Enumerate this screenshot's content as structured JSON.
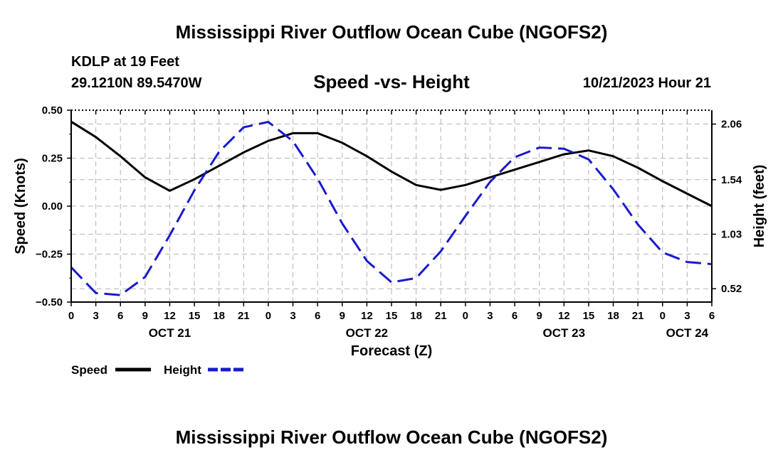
{
  "titles": {
    "top": "Mississippi River Outflow Ocean Cube (NGOFS2)",
    "bottom": "Mississippi River Outflow Ocean Cube (NGOFS2)"
  },
  "info": {
    "station": "KDLP at 19 Feet",
    "coords": "29.1210N  89.5470W",
    "subtitle": "Speed -vs- Height",
    "datetime": "10/21/2023 Hour 21"
  },
  "colors": {
    "speed": "#000000",
    "height": "#1a1acc",
    "grid": "#b4b4b4"
  },
  "chart_data": {
    "type": "line",
    "title": "Speed -vs- Height",
    "xlabel": "Forecast (Z)",
    "ylabel_left": "Speed (Knots)",
    "ylabel_right": "Height (feet)",
    "x_unit": "forecast hour from 10/21 00Z",
    "xlim": [
      0,
      78
    ],
    "ylim_left": [
      -0.5,
      0.5
    ],
    "ylim_right": [
      0.395,
      2.19
    ],
    "x_ticks": [
      0,
      3,
      6,
      9,
      12,
      15,
      18,
      21,
      24,
      27,
      30,
      33,
      36,
      39,
      42,
      45,
      48,
      51,
      54,
      57,
      60,
      63,
      66,
      69,
      72,
      75,
      78
    ],
    "x_tick_labels": [
      "0",
      "3",
      "6",
      "9",
      "12",
      "15",
      "18",
      "21",
      "0",
      "3",
      "6",
      "9",
      "12",
      "15",
      "18",
      "21",
      "0",
      "3",
      "6",
      "9",
      "12",
      "15",
      "18",
      "21",
      "0",
      "3",
      "6"
    ],
    "date_labels": [
      {
        "text": "OCT 21",
        "at": 12
      },
      {
        "text": "OCT 22",
        "at": 36
      },
      {
        "text": "OCT 23",
        "at": 60
      },
      {
        "text": "OCT 24",
        "at": 75
      }
    ],
    "y_left_ticks": [
      0.5,
      0.25,
      0.0,
      -0.25,
      -0.5
    ],
    "y_left_tick_labels": [
      "0.50",
      "0.25",
      "0.00",
      "−0.25",
      "−0.50"
    ],
    "y_right_ticks": [
      2.06,
      1.54,
      1.03,
      0.52
    ],
    "y_right_tick_labels": [
      "2.06",
      "1.54",
      "1.03",
      "0.52"
    ],
    "grid": true,
    "legend_position": "bottom-left",
    "series": [
      {
        "name": "Speed",
        "axis": "left",
        "style": "solid",
        "x": [
          0,
          3,
          6,
          9,
          12,
          15,
          18,
          21,
          24,
          27,
          30,
          33,
          36,
          39,
          42,
          45,
          48,
          51,
          54,
          57,
          60,
          63,
          66,
          69,
          72,
          75,
          78
        ],
        "values": [
          0.44,
          0.36,
          0.26,
          0.15,
          0.08,
          0.14,
          0.21,
          0.28,
          0.34,
          0.38,
          0.38,
          0.33,
          0.26,
          0.18,
          0.11,
          0.085,
          0.11,
          0.15,
          0.19,
          0.23,
          0.27,
          0.29,
          0.26,
          0.2,
          0.13,
          0.065,
          0.0
        ]
      },
      {
        "name": "Height",
        "axis": "right",
        "style": "dashed",
        "x": [
          0,
          3,
          6,
          9,
          12,
          15,
          18,
          21,
          24,
          27,
          30,
          33,
          36,
          39,
          42,
          45,
          48,
          51,
          54,
          57,
          60,
          63,
          66,
          69,
          72,
          75,
          78
        ],
        "values": [
          0.72,
          0.48,
          0.46,
          0.63,
          1.02,
          1.44,
          1.8,
          2.03,
          2.08,
          1.9,
          1.55,
          1.13,
          0.78,
          0.58,
          0.62,
          0.87,
          1.2,
          1.52,
          1.75,
          1.84,
          1.83,
          1.73,
          1.45,
          1.12,
          0.86,
          0.77,
          0.75
        ]
      }
    ],
    "legend": [
      {
        "label": "Speed"
      },
      {
        "label": "Height"
      }
    ]
  }
}
